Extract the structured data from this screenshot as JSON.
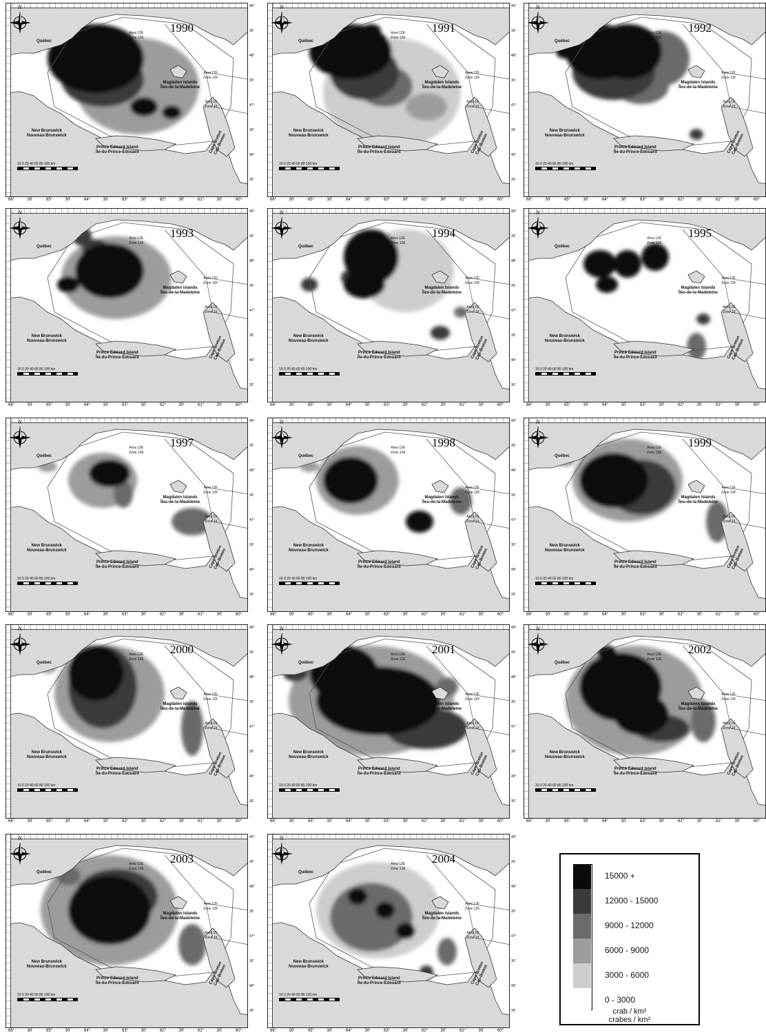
{
  "panels": [
    {
      "year": "1990"
    },
    {
      "year": "1991"
    },
    {
      "year": "1992"
    },
    {
      "year": "1993"
    },
    {
      "year": "1994"
    },
    {
      "year": "1995"
    },
    {
      "year": "1997"
    },
    {
      "year": "1998"
    },
    {
      "year": "1999"
    },
    {
      "year": "2000"
    },
    {
      "year": "2001"
    },
    {
      "year": "2002"
    },
    {
      "year": "2003"
    },
    {
      "year": "2004"
    }
  ],
  "map_labels": {
    "quebec": "Québec",
    "new_brunswick": "New Brunswick",
    "nouveau_brunswick": "Nouveau-Brunswick",
    "magdalen": "Magdalen Islands",
    "madeleine": "Îles-de-la-Madeleine",
    "pei": "Prince Edward Island",
    "ipe": "Île-du-Prince-Édouard",
    "cape_breton": "Cape Breton",
    "cap_breton": "Cap-Breton",
    "area12e": "Area 12E",
    "zone12e": "Zone 12E",
    "area12f": "Area 12F",
    "zone12f": "Zone 12F",
    "area19": "Area 19",
    "zone19": "Zone 19",
    "compass_n": "N",
    "scale": "10 0   20   40   60   80  100 km"
  },
  "axes": {
    "longitudes": [
      "66°",
      "30'",
      "65°",
      "30'",
      "64°",
      "30'",
      "63°",
      "30'",
      "62°",
      "30'",
      "61°",
      "30'",
      "60°"
    ],
    "latitudes": [
      "49°",
      "30'",
      "48°",
      "30'",
      "47°",
      "30'",
      "46°",
      "30'"
    ]
  },
  "legend": {
    "classes": [
      {
        "label": "15000 +",
        "color": "#0a0a0a"
      },
      {
        "label": "12000 - 15000",
        "color": "#3a3a3a"
      },
      {
        "label": "9000 - 12000",
        "color": "#6b6b6b"
      },
      {
        "label": "6000 - 9000",
        "color": "#9c9c9c"
      },
      {
        "label": "3000 - 6000",
        "color": "#cdcdcd"
      },
      {
        "label": "0 - 3000",
        "color": "#ffffff"
      }
    ],
    "unit_en": "crab / km²",
    "unit_fr": "crabes / km²"
  },
  "colors": {
    "land": "#d9d9d9",
    "sea": "#ffffff",
    "contour": "#555555"
  }
}
